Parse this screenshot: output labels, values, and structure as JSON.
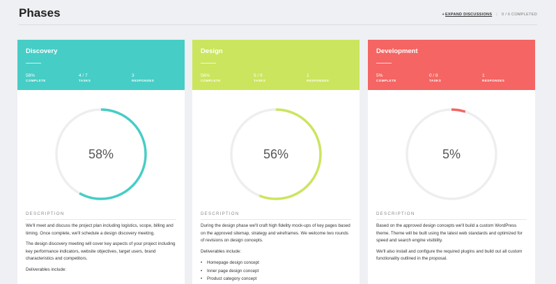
{
  "page": {
    "title": "Phases",
    "expand_label": "EXPAND DISCUSSIONS",
    "completed": "0 / 6 COMPLETED"
  },
  "phases": [
    {
      "title": "Discovery",
      "color": "#46cdc6",
      "percent": 58,
      "percent_label": "58%",
      "stats": [
        {
          "value": "58%",
          "label": "COMPLETE"
        },
        {
          "value": "4 / 7",
          "label": "TASKS"
        },
        {
          "value": "3",
          "label": "RESPONSES"
        }
      ],
      "description_heading": "DESCRIPTION",
      "paragraphs": [
        "We'll meet and discuss the project plan including logistics, scope, billing and timing. Once complete, we'll schedule a design discovery meeting.",
        "The design discovery meeting will cover key aspects of your project including key performance indicators, website objectives, target users, brand characteristics and competitors.",
        "Deliverables include:"
      ],
      "items": []
    },
    {
      "title": "Design",
      "color": "#cbe55e",
      "percent": 56,
      "percent_label": "56%",
      "stats": [
        {
          "value": "56%",
          "label": "COMPLETE"
        },
        {
          "value": "5 / 9",
          "label": "TASKS"
        },
        {
          "value": "1",
          "label": "RESPONSES"
        }
      ],
      "description_heading": "DESCRIPTION",
      "paragraphs": [
        "During the design phase we'll craft high fidelity mock-ups of key pages based on the approved sitemap, strategy and wireframes. We welcome two rounds of revisions on design concepts.",
        "Deliverables include:"
      ],
      "items": [
        "Homepage design concept",
        "Inner page design concept",
        "Product category concept"
      ]
    },
    {
      "title": "Development",
      "color": "#f46563",
      "percent": 5,
      "percent_label": "5%",
      "stats": [
        {
          "value": "5%",
          "label": "COMPLETE"
        },
        {
          "value": "0 / 8",
          "label": "TASKS"
        },
        {
          "value": "1",
          "label": "RESPONSES"
        }
      ],
      "description_heading": "DESCRIPTION",
      "paragraphs": [
        "Based on the approved design concepts we'll build a custom WordPress theme. Theme will be built using the latest web standards and optimized for speed and search engine visibility.",
        "We'll also install and configure the required plugins and build out all custom functionality outlined in the proposal."
      ],
      "items": []
    }
  ]
}
